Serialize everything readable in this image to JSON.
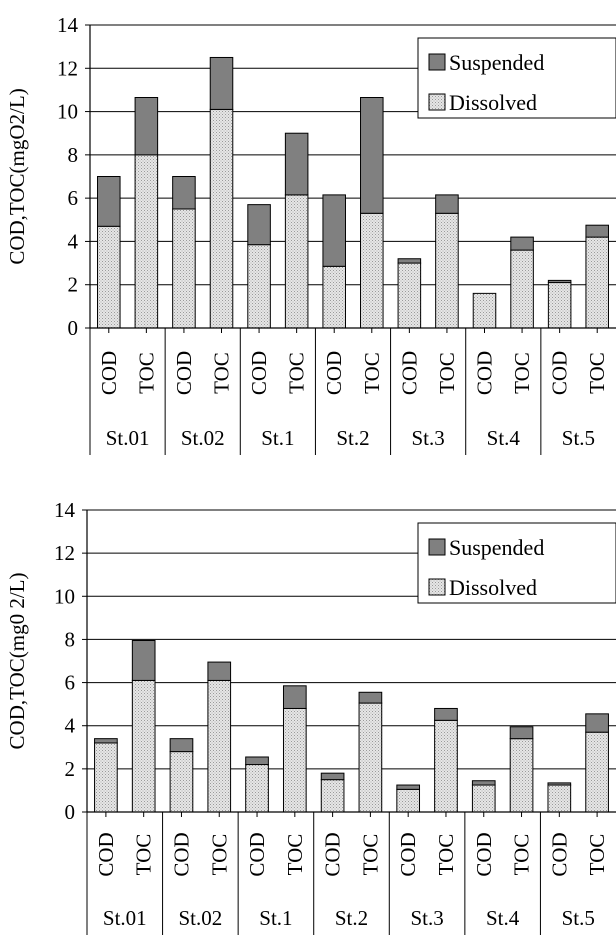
{
  "colors": {
    "background": "#ffffff",
    "axis": "#000000",
    "grid": "#000000",
    "suspended": "#808080",
    "dissolved": "#d9d9d9"
  },
  "chart_data": [
    {
      "type": "bar",
      "stacked": true,
      "title": "",
      "xlabel": "",
      "ylabel": "COD,TOC(mgO2/L)",
      "ylim": [
        0,
        14
      ],
      "yticks": [
        0,
        2,
        4,
        6,
        8,
        10,
        12,
        14
      ],
      "grid": true,
      "legend_position": "top-right",
      "categories": [
        "COD",
        "TOC",
        "COD",
        "TOC",
        "COD",
        "TOC",
        "COD",
        "TOC",
        "COD",
        "TOC",
        "COD",
        "TOC",
        "COD",
        "TOC"
      ],
      "groups": [
        "St.01",
        "St.02",
        "St.1",
        "St.2",
        "St.3",
        "St.4",
        "St.5"
      ],
      "series": [
        {
          "name": "Dissolved",
          "values": [
            4.7,
            8.0,
            5.5,
            10.1,
            3.85,
            6.15,
            2.85,
            5.3,
            3.0,
            5.3,
            1.6,
            3.6,
            2.1,
            4.2
          ]
        },
        {
          "name": "Suspended",
          "values": [
            2.3,
            2.65,
            1.5,
            2.4,
            1.85,
            2.85,
            3.3,
            5.35,
            0.2,
            0.85,
            0.0,
            0.6,
            0.1,
            0.55
          ]
        }
      ],
      "legend_order": [
        "Suspended",
        "Dissolved"
      ]
    },
    {
      "type": "bar",
      "stacked": true,
      "title": "",
      "xlabel": "",
      "ylabel": "COD,TOC(mg0 2/L)",
      "ylim": [
        0,
        14
      ],
      "yticks": [
        0,
        2,
        4,
        6,
        8,
        10,
        12,
        14
      ],
      "grid": true,
      "legend_position": "top-right",
      "categories": [
        "COD",
        "TOC",
        "COD",
        "TOC",
        "COD",
        "TOC",
        "COD",
        "TOC",
        "COD",
        "TOC",
        "COD",
        "TOC",
        "COD",
        "TOC"
      ],
      "groups": [
        "St.01",
        "St.02",
        "St.1",
        "St.2",
        "St.3",
        "St.4",
        "St.5"
      ],
      "series": [
        {
          "name": "Dissolved",
          "values": [
            3.2,
            6.1,
            2.8,
            6.1,
            2.2,
            4.8,
            1.5,
            5.05,
            1.05,
            4.25,
            1.25,
            3.4,
            1.25,
            3.7
          ]
        },
        {
          "name": "Suspended",
          "values": [
            0.2,
            1.85,
            0.6,
            0.85,
            0.35,
            1.05,
            0.3,
            0.5,
            0.2,
            0.55,
            0.2,
            0.55,
            0.1,
            0.85
          ]
        }
      ],
      "legend_order": [
        "Suspended",
        "Dissolved"
      ]
    }
  ]
}
